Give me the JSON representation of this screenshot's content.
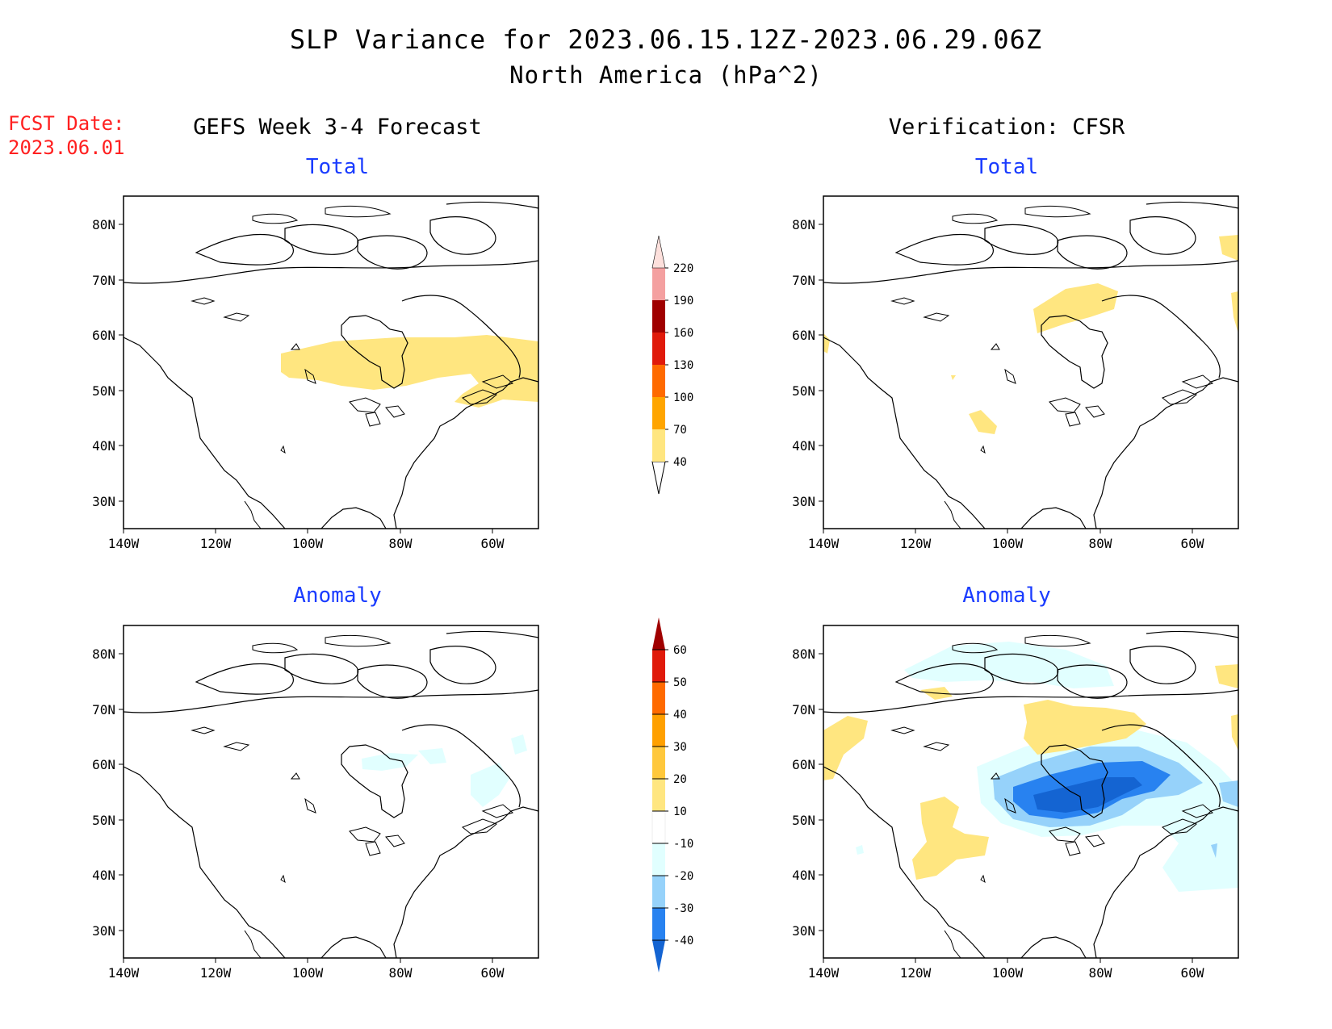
{
  "title": {
    "line1": "SLP Variance for 2023.06.15.12Z-2023.06.29.06Z",
    "line2": "North America (hPa^2)"
  },
  "fcst": {
    "label": "FCST Date:",
    "date": "2023.06.01"
  },
  "columns": {
    "left": "GEFS Week 3-4 Forecast",
    "right": "Verification: CFSR"
  },
  "rows": {
    "top": "Total",
    "bottom": "Anomaly"
  },
  "axes": {
    "lat_labels": [
      "80N",
      "70N",
      "60N",
      "50N",
      "40N",
      "30N"
    ],
    "lon_labels": [
      "140W",
      "120W",
      "100W",
      "80W",
      "60W"
    ]
  },
  "colorbars": {
    "total": {
      "levels": [
        "40",
        "70",
        "100",
        "130",
        "160",
        "190",
        "220"
      ],
      "colors": [
        "#ffe680",
        "#ffa500",
        "#ff6a00",
        "#e01a0a",
        "#a00000",
        "#f4a0a0",
        "#fde0dc"
      ]
    },
    "anomaly": {
      "levels": [
        "-40",
        "-30",
        "-20",
        "-10",
        "10",
        "20",
        "30",
        "40",
        "50",
        "60"
      ],
      "colors": [
        "#1464d2",
        "#2882f0",
        "#96d2fa",
        "#e1ffff",
        "#ffffff",
        "#ffe680",
        "#ffc83c",
        "#ffa000",
        "#ff6a00",
        "#e01a0a",
        "#a00000"
      ]
    }
  }
}
